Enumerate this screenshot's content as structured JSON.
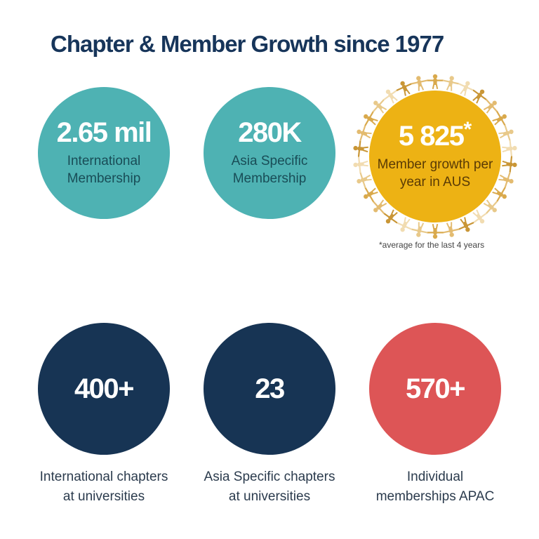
{
  "title": "Chapter & Member Growth since 1977",
  "stats": {
    "intl_membership": {
      "value": "2.65 mil",
      "label": "International\nMembership"
    },
    "asia_membership": {
      "value": "280K",
      "label": "Asia Specific\nMembership"
    },
    "aus_growth": {
      "value": "5 825",
      "marker": "*",
      "label": "Member growth per\nyear in AUS"
    },
    "intl_chapters": {
      "value": "400+",
      "label": "International chapters\nat universities"
    },
    "asia_chapters": {
      "value": "23",
      "label": "Asia Specific chapters\nat universities"
    },
    "apac_memberships": {
      "value": "570+",
      "label": "Individual\nmemberships APAC"
    }
  },
  "footnote": "*average for the last 4 years",
  "colors": {
    "title": "#17355a",
    "teal": "#4eb2b3",
    "gold": "#edb214",
    "navy": "#173454",
    "red": "#dd5556",
    "figures_ring": "#d9a94c"
  },
  "icons": {
    "ring": "people-holding-hands-ring-icon"
  }
}
